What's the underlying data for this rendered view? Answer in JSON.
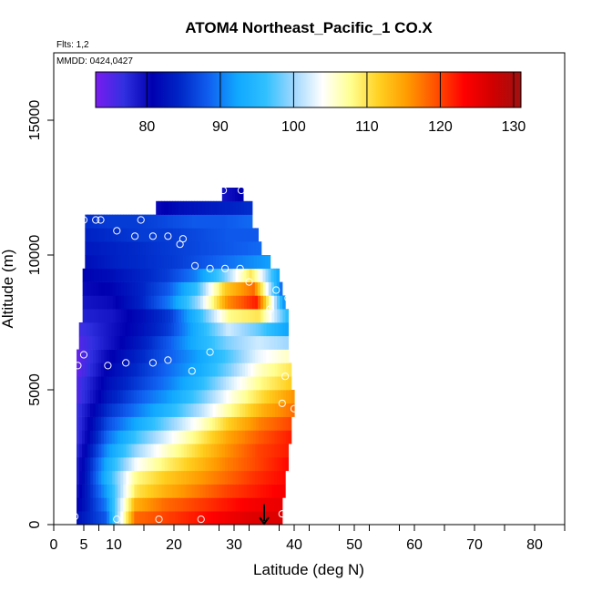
{
  "chart_data": {
    "type": "heatmap",
    "title": "ATOM4 Northeast_Pacific_1 CO.X",
    "flights_label": "Flts: 1,2",
    "date_label": "MMDD: 0424,0427",
    "xlabel": "Latitude (deg N)",
    "ylabel": "Altitude (m)",
    "xlim": [
      0,
      85
    ],
    "ylim": [
      0,
      17500
    ],
    "x_ticks": [
      0,
      5,
      10,
      20,
      30,
      40,
      50,
      60,
      70,
      80
    ],
    "x_minor_ticks": [
      7.5,
      15,
      22.5,
      27.5,
      32.5,
      37.5,
      42.5,
      47.5,
      52.5,
      57.5,
      65,
      75,
      85
    ],
    "y_ticks": [
      0,
      5000,
      10000,
      15000
    ],
    "colorbar": {
      "range": [
        73,
        131
      ],
      "ticks": [
        80,
        90,
        100,
        110,
        120,
        130
      ],
      "colors": [
        "#7a1cf0",
        "#3030e0",
        "#0000b0",
        "#0028c8",
        "#1060f0",
        "#10a8ff",
        "#30c0ff",
        "#a0d8ff",
        "#ffffff",
        "#ffff90",
        "#ffd020",
        "#ff9a00",
        "#ff5000",
        "#ff0000",
        "#d00000",
        "#a01010"
      ]
    },
    "layers": [
      {
        "alt": [
          0,
          500
        ],
        "lat": [
          3.8,
          38
        ],
        "values": [
          82,
          88,
          118,
          120,
          122,
          124,
          126,
          126
        ]
      },
      {
        "alt": [
          500,
          1000
        ],
        "lat": [
          3.8,
          38
        ],
        "values": [
          80,
          90,
          114,
          118,
          120,
          122,
          124,
          125
        ]
      },
      {
        "alt": [
          1000,
          1500
        ],
        "lat": [
          3.8,
          38.5
        ],
        "values": [
          79,
          92,
          110,
          114,
          117,
          120,
          122,
          124
        ]
      },
      {
        "alt": [
          1500,
          2000
        ],
        "lat": [
          3.8,
          38.5
        ],
        "values": [
          78,
          94,
          108,
          112,
          115,
          118,
          121,
          123
        ]
      },
      {
        "alt": [
          2000,
          2500
        ],
        "lat": [
          3.8,
          39
        ],
        "values": [
          78,
          93,
          104,
          109,
          113,
          117,
          120,
          123
        ]
      },
      {
        "alt": [
          2500,
          3000
        ],
        "lat": [
          3.8,
          39
        ],
        "values": [
          77,
          91,
          100,
          106,
          111,
          116,
          120,
          122
        ]
      },
      {
        "alt": [
          3000,
          3500
        ],
        "lat": [
          3.8,
          39.5
        ],
        "values": [
          76,
          89,
          97,
          103,
          109,
          115,
          119,
          122
        ]
      },
      {
        "alt": [
          3500,
          4000
        ],
        "lat": [
          3.8,
          39.5
        ],
        "values": [
          76,
          87,
          93,
          99,
          105,
          112,
          117,
          120
        ]
      },
      {
        "alt": [
          4000,
          4500
        ],
        "lat": [
          3.8,
          40
        ],
        "values": [
          76,
          85,
          90,
          95,
          101,
          108,
          114,
          118
        ]
      },
      {
        "alt": [
          4500,
          5000
        ],
        "lat": [
          3.8,
          40
        ],
        "values": [
          75,
          83,
          88,
          92,
          98,
          105,
          111,
          116
        ]
      },
      {
        "alt": [
          5000,
          5500
        ],
        "lat": [
          3.8,
          39.5
        ],
        "values": [
          75,
          82,
          86,
          90,
          95,
          102,
          108,
          112
        ]
      },
      {
        "alt": [
          5500,
          6000
        ],
        "lat": [
          3.8,
          39.5
        ],
        "values": [
          74,
          81,
          85,
          89,
          93,
          99,
          106,
          110
        ]
      },
      {
        "alt": [
          6000,
          6500
        ],
        "lat": [
          3.8,
          39
        ],
        "values": [
          74,
          80,
          84,
          88,
          92,
          97,
          103,
          106
        ]
      },
      {
        "alt": [
          6500,
          7000
        ],
        "lat": [
          4.2,
          39
        ],
        "values": [
          75,
          79,
          83,
          88,
          94,
          99,
          102,
          100
        ]
      },
      {
        "alt": [
          7000,
          7500
        ],
        "lat": [
          4.2,
          39
        ],
        "values": [
          76,
          79,
          82,
          86,
          94,
          102,
          98,
          92
        ]
      },
      {
        "alt": [
          7500,
          8000
        ],
        "lat": [
          4.8,
          39
        ],
        "values": [
          78,
          79,
          82,
          86,
          96,
          108,
          110,
          95
        ]
      },
      {
        "alt": [
          8000,
          8500
        ],
        "lat": [
          4.8,
          38.5
        ],
        "values": [
          79,
          80,
          84,
          90,
          100,
          116,
          122,
          90
        ]
      },
      {
        "alt": [
          8500,
          9000
        ],
        "lat": [
          4.8,
          38
        ],
        "values": [
          80,
          81,
          84,
          88,
          96,
          112,
          118,
          88
        ]
      },
      {
        "alt": [
          9000,
          9500
        ],
        "lat": [
          4.8,
          37.5
        ],
        "values": [
          81,
          82,
          84,
          86,
          90,
          98,
          110,
          92
        ]
      },
      {
        "alt": [
          9500,
          10000
        ],
        "lat": [
          5.2,
          36
        ],
        "values": [
          82,
          84,
          85,
          86,
          88,
          90,
          92
        ]
      },
      {
        "alt": [
          10000,
          10500
        ],
        "lat": [
          5.2,
          34.5
        ],
        "values": [
          83,
          84,
          85,
          86,
          87,
          88,
          89
        ]
      },
      {
        "alt": [
          10500,
          11000
        ],
        "lat": [
          5.2,
          34
        ],
        "values": [
          84,
          85,
          86,
          86,
          87,
          88,
          88
        ]
      },
      {
        "alt": [
          11000,
          11500
        ],
        "lat": [
          5.2,
          33
        ],
        "values": [
          85,
          86,
          86,
          87,
          88,
          88,
          89
        ]
      },
      {
        "alt": [
          11500,
          12000
        ],
        "lat": [
          17,
          33
        ],
        "values": [
          80,
          82,
          83,
          84,
          85
        ]
      },
      {
        "alt": [
          12000,
          12500
        ],
        "lat": [
          28,
          31.5
        ],
        "values": [
          79,
          80,
          81
        ]
      }
    ],
    "sample_points": [
      {
        "lat": 5.0,
        "alt": 11300
      },
      {
        "lat": 7.0,
        "alt": 11300
      },
      {
        "lat": 7.8,
        "alt": 11300
      },
      {
        "lat": 14.5,
        "alt": 11300
      },
      {
        "lat": 28.2,
        "alt": 12400
      },
      {
        "lat": 31.2,
        "alt": 12400
      },
      {
        "lat": 10.5,
        "alt": 10900
      },
      {
        "lat": 13.5,
        "alt": 10700
      },
      {
        "lat": 16.5,
        "alt": 10700
      },
      {
        "lat": 19.0,
        "alt": 10700
      },
      {
        "lat": 21.5,
        "alt": 10600
      },
      {
        "lat": 21.0,
        "alt": 10400
      },
      {
        "lat": 23.5,
        "alt": 9600
      },
      {
        "lat": 26.0,
        "alt": 9500
      },
      {
        "lat": 28.5,
        "alt": 9500
      },
      {
        "lat": 31.0,
        "alt": 9500
      },
      {
        "lat": 32.5,
        "alt": 9000
      },
      {
        "lat": 37.0,
        "alt": 8700
      },
      {
        "lat": 39.0,
        "alt": 8400
      },
      {
        "lat": 36.0,
        "alt": 8000
      },
      {
        "lat": 5.0,
        "alt": 6300
      },
      {
        "lat": 4.0,
        "alt": 5900
      },
      {
        "lat": 9.0,
        "alt": 5900
      },
      {
        "lat": 12.0,
        "alt": 6000
      },
      {
        "lat": 16.5,
        "alt": 6000
      },
      {
        "lat": 19.0,
        "alt": 6100
      },
      {
        "lat": 23.0,
        "alt": 5700
      },
      {
        "lat": 26.0,
        "alt": 6400
      },
      {
        "lat": 38.5,
        "alt": 5500
      },
      {
        "lat": 38.0,
        "alt": 4500
      },
      {
        "lat": 40.0,
        "alt": 4300
      },
      {
        "lat": 3.5,
        "alt": 300
      },
      {
        "lat": 10.5,
        "alt": 200
      },
      {
        "lat": 17.5,
        "alt": 200
      },
      {
        "lat": 24.5,
        "alt": 200
      },
      {
        "lat": 38.0,
        "alt": 400
      }
    ],
    "arrow": {
      "lat": 35,
      "alt_from": 750,
      "alt_to": 0
    }
  }
}
